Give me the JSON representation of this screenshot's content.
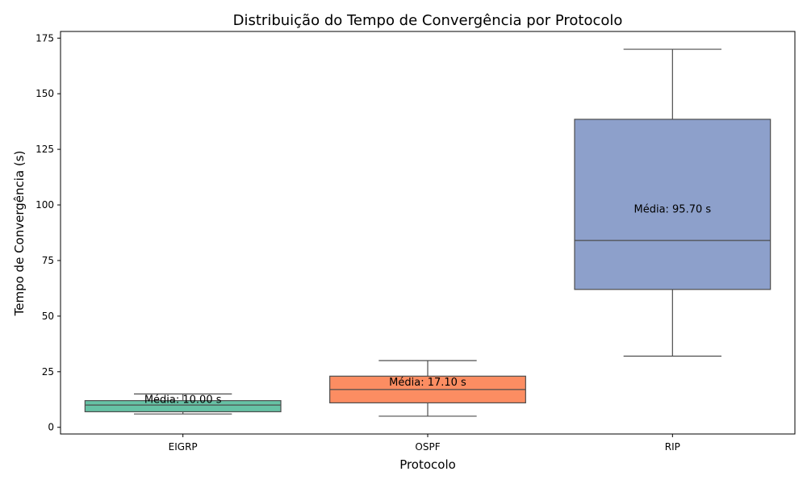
{
  "chart_data": {
    "type": "box",
    "title": "Distribuição do Tempo de Convergência por Protocolo",
    "xlabel": "Protocolo",
    "ylabel": "Tempo de Convergência (s)",
    "ylim": [
      -3,
      178
    ],
    "yticks": [
      0,
      25,
      50,
      75,
      100,
      125,
      150,
      175
    ],
    "grid": false,
    "categories": [
      "EIGRP",
      "OSPF",
      "RIP"
    ],
    "boxes": [
      {
        "category": "EIGRP",
        "whisker_low": 6,
        "q1": 7,
        "median": 10,
        "q3": 12,
        "whisker_high": 15,
        "color": "#66c2a5",
        "mean_label": "Média: 10.00 s",
        "mean_label_y": 12.5
      },
      {
        "category": "OSPF",
        "whisker_low": 5,
        "q1": 11,
        "median": 17,
        "q3": 23,
        "whisker_high": 30,
        "color": "#fc8d62",
        "mean_label": "Média: 17.10 s",
        "mean_label_y": 20.3
      },
      {
        "category": "RIP",
        "whisker_low": 32,
        "q1": 62,
        "median": 84,
        "q3": 138.5,
        "whisker_high": 170,
        "color": "#8da0cb",
        "mean_label": "Média: 95.70 s",
        "mean_label_y": 98
      }
    ]
  }
}
